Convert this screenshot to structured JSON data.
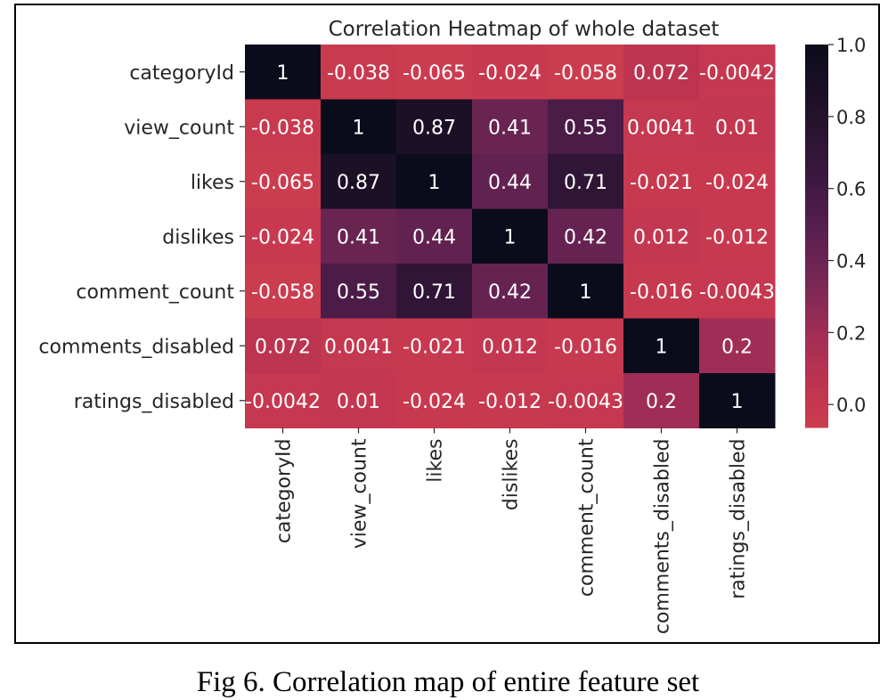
{
  "chart_data": {
    "type": "heatmap",
    "title": "Correlation Heatmap of whole dataset",
    "xlabel": "",
    "ylabel": "",
    "rows": [
      "categoryId",
      "view_count",
      "likes",
      "dislikes",
      "comment_count",
      "comments_disabled",
      "ratings_disabled"
    ],
    "cols": [
      "categoryId",
      "view_count",
      "likes",
      "dislikes",
      "comment_count",
      "comments_disabled",
      "ratings_disabled"
    ],
    "values": [
      [
        1,
        -0.038,
        -0.065,
        -0.024,
        -0.058,
        0.072,
        -0.0042
      ],
      [
        -0.038,
        1,
        0.87,
        0.41,
        0.55,
        0.0041,
        0.01
      ],
      [
        -0.065,
        0.87,
        1,
        0.44,
        0.71,
        -0.021,
        -0.024
      ],
      [
        -0.024,
        0.41,
        0.44,
        1,
        0.42,
        0.012,
        -0.012
      ],
      [
        -0.058,
        0.55,
        0.71,
        0.42,
        1,
        -0.016,
        -0.0043
      ],
      [
        0.072,
        0.0041,
        -0.021,
        0.012,
        -0.016,
        1,
        0.2
      ],
      [
        -0.0042,
        0.01,
        -0.024,
        -0.012,
        -0.0043,
        0.2,
        1
      ]
    ],
    "annotations": [
      [
        "1",
        "-0.038",
        "-0.065",
        "-0.024",
        "-0.058",
        "0.072",
        "-0.0042"
      ],
      [
        "-0.038",
        "1",
        "0.87",
        "0.41",
        "0.55",
        "0.0041",
        "0.01"
      ],
      [
        "-0.065",
        "0.87",
        "1",
        "0.44",
        "0.71",
        "-0.021",
        "-0.024"
      ],
      [
        "-0.024",
        "0.41",
        "0.44",
        "1",
        "0.42",
        "0.012",
        "-0.012"
      ],
      [
        "-0.058",
        "0.55",
        "0.71",
        "0.42",
        "1",
        "-0.016",
        "-0.0043"
      ],
      [
        "0.072",
        "0.0041",
        "-0.021",
        "0.012",
        "-0.016",
        "1",
        "0.2"
      ],
      [
        "-0.0042",
        "0.01",
        "-0.024",
        "-0.012",
        "-0.0043",
        "0.2",
        "1"
      ]
    ],
    "colorbar": {
      "range": [
        -0.065,
        1.0
      ],
      "ticks": [
        0.0,
        0.2,
        0.4,
        0.6,
        0.8,
        1.0
      ],
      "tick_labels": [
        "0.0",
        "0.2",
        "0.4",
        "0.6",
        "0.8",
        "1.0"
      ],
      "colormap": "rocket",
      "color_low": "#cc3c4f",
      "color_high": "#0b0c1b"
    },
    "grid": false,
    "legend": "colorbar-right"
  },
  "caption": "Fig 6. Correlation map of entire feature set"
}
